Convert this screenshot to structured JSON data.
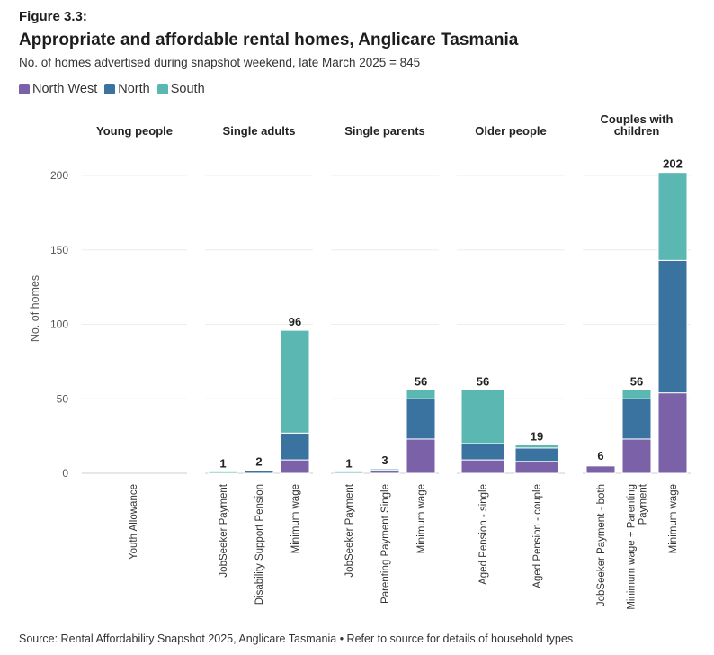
{
  "figure_label": "Figure 3.3:",
  "chart_data": {
    "type": "bar",
    "stacked": true,
    "title": "Appropriate and affordable rental homes, Anglicare Tasmania",
    "subtitle": "No. of homes advertised during snapshot weekend, late March 2025 = 845",
    "ylabel": "No. of homes",
    "xlabel": "",
    "ylim": [
      0,
      220
    ],
    "yticks": [
      0,
      50,
      100,
      150,
      200
    ],
    "grid": true,
    "legend_position": "top-left",
    "series_names": [
      "North West",
      "North",
      "South"
    ],
    "colors": {
      "North West": "#7b62a8",
      "North": "#3b73a0",
      "South": "#5ab7b1"
    },
    "facets": [
      {
        "title": [
          "Young people"
        ],
        "bars": [
          {
            "category": "Youth Allowance",
            "label_lines": [
              "Youth Allowance"
            ],
            "values": [
              0,
              0,
              0
            ],
            "total": null
          }
        ]
      },
      {
        "title": [
          "Single adults"
        ],
        "bars": [
          {
            "category": "JobSeeker Payment",
            "label_lines": [
              "JobSeeker Payment"
            ],
            "values": [
              0,
              0,
              1
            ],
            "total": "1"
          },
          {
            "category": "Disability Support Pension",
            "label_lines": [
              "Disability Support Pension"
            ],
            "values": [
              0,
              2,
              0
            ],
            "total": "2"
          },
          {
            "category": "Minimum wage",
            "label_lines": [
              "Minimum wage"
            ],
            "values": [
              9,
              18,
              69
            ],
            "total": "96"
          }
        ]
      },
      {
        "title": [
          "Single parents"
        ],
        "bars": [
          {
            "category": "JobSeeker Payment",
            "label_lines": [
              "JobSeeker Payment"
            ],
            "values": [
              0,
              0,
              1
            ],
            "total": "1"
          },
          {
            "category": "Parenting Payment Single",
            "label_lines": [
              "Parenting Payment Single"
            ],
            "values": [
              1.5,
              0.5,
              1
            ],
            "total": "3"
          },
          {
            "category": "Minimum wage",
            "label_lines": [
              "Minimum wage"
            ],
            "values": [
              23,
              27,
              6
            ],
            "total": "56"
          }
        ]
      },
      {
        "title": [
          "Older people"
        ],
        "bars": [
          {
            "category": "Aged Pension - single",
            "label_lines": [
              "Aged Pension - single"
            ],
            "values": [
              9,
              11,
              36
            ],
            "total": "56"
          },
          {
            "category": "Aged Pension - couple",
            "label_lines": [
              "Aged Pension - couple"
            ],
            "values": [
              8,
              9,
              2
            ],
            "total": "19"
          }
        ]
      },
      {
        "title": [
          "Couples with",
          "children"
        ],
        "bars": [
          {
            "category": "JobSeeker Payment - both",
            "label_lines": [
              "JobSeeker Payment - both"
            ],
            "values": [
              5,
              0.5,
              0.5
            ],
            "total": "6"
          },
          {
            "category": "Minimum wage + Parenting Payment",
            "label_lines": [
              "Minimum wage + Parenting",
              "Payment"
            ],
            "values": [
              23,
              27,
              6
            ],
            "total": "56"
          },
          {
            "category": "Minimum wage",
            "label_lines": [
              "Minimum wage"
            ],
            "values": [
              54,
              89,
              59
            ],
            "total": "202"
          }
        ]
      }
    ]
  },
  "footer": "Source: Rental Affordability Snapshot 2025, Anglicare Tasmania • Refer to source for details of household types"
}
